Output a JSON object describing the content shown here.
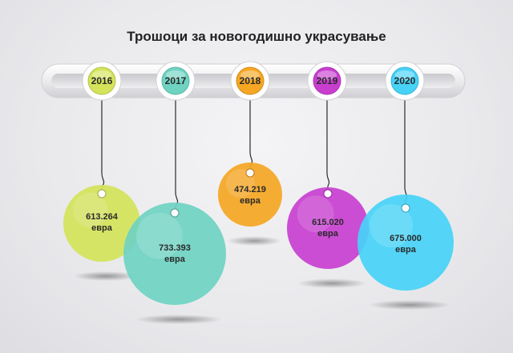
{
  "title": "Трошоци за новогодишно украсување",
  "colors": {
    "2016": "#d4e35a",
    "2017": "#6fd3c2",
    "2018": "#f5a623",
    "2019": "#c83fd0",
    "2020": "#46d3f7"
  },
  "chart_data": {
    "type": "bar",
    "title": "Трошоци за новогодишно украсување",
    "categories": [
      "2016",
      "2017",
      "2018",
      "2019",
      "2020"
    ],
    "values": [
      613264,
      733393,
      474219,
      615020,
      675000
    ],
    "value_labels": [
      "613.264",
      "733.393",
      "474.219",
      "615.020",
      "675.000"
    ],
    "unit": "евра"
  }
}
